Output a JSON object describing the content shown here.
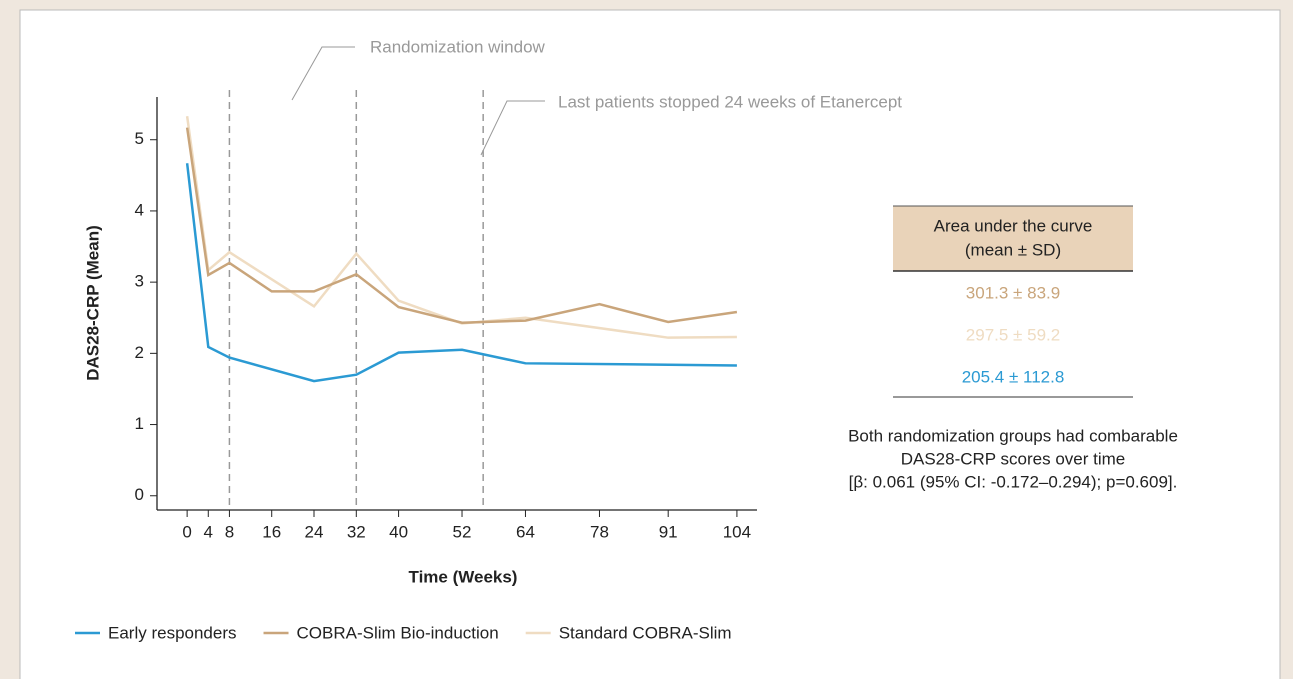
{
  "chart_data": {
    "type": "line",
    "x_label": "Time (Weeks)",
    "y_label": "DAS28-CRP (Mean)",
    "xlim": [
      -5.7,
      107.8
    ],
    "ylim": [
      -0.2,
      5.6
    ],
    "xticks": [
      0,
      4,
      8,
      16,
      24,
      32,
      40,
      52,
      64,
      78,
      91,
      104
    ],
    "yticks": [
      0,
      1,
      2,
      3,
      4,
      5
    ],
    "reference_lines": [
      8,
      32,
      56
    ],
    "annotations": [
      "Randomization window",
      "Last patients stopped 24 weeks of Etanercept"
    ],
    "series": [
      {
        "name": "Early responders",
        "color": "#2b9ad3",
        "x": [
          0,
          4,
          8,
          24,
          32,
          40,
          52,
          64,
          104
        ],
        "values": [
          4.67,
          2.09,
          1.94,
          1.61,
          1.7,
          2.01,
          2.05,
          1.86,
          1.83
        ]
      },
      {
        "name": "COBRA-Slim Bio-induction",
        "color": "#c9a57b",
        "x": [
          0,
          4,
          8,
          16,
          24,
          32,
          40,
          52,
          64,
          78,
          91,
          104
        ],
        "values": [
          5.17,
          3.1,
          3.27,
          2.87,
          2.87,
          3.11,
          2.65,
          2.43,
          2.46,
          2.69,
          2.44,
          2.58
        ]
      },
      {
        "name": "Standard COBRA-Slim",
        "color": "#efdcc2",
        "x": [
          0,
          4,
          8,
          24,
          32,
          40,
          52,
          64,
          91,
          104
        ],
        "values": [
          5.33,
          3.17,
          3.42,
          2.66,
          3.4,
          2.74,
          2.42,
          2.5,
          2.22,
          2.23
        ]
      }
    ]
  },
  "auc_table": {
    "header": [
      "Area under the curve",
      "(mean ± SD)"
    ],
    "rows": [
      "301.3 ± 83.9",
      "297.5 ± 59.2",
      "205.4 ± 112.8"
    ]
  },
  "note": [
    "Both randomization groups had combarable",
    "DAS28-CRP scores over time",
    "[β: 0.061 (95% CI: -0.172–0.294); p=0.609]."
  ]
}
